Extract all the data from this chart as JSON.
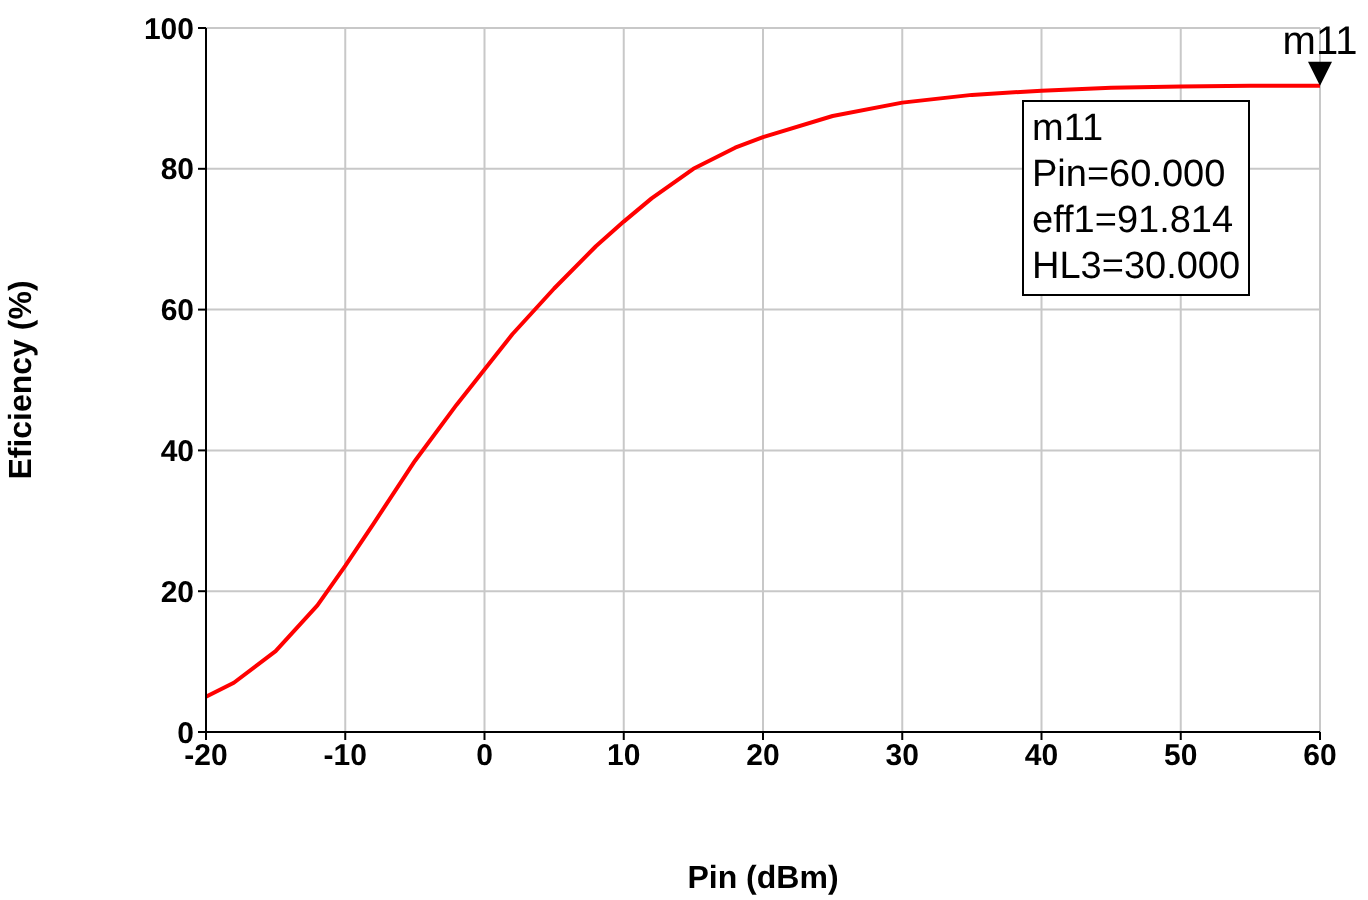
{
  "chart_data": {
    "type": "line",
    "xlabel": "Pin (dBm)",
    "ylabel": "Eficiency (%)",
    "x": [
      -20,
      -18,
      -15,
      -12,
      -10,
      -8,
      -5,
      -2,
      0,
      2,
      5,
      8,
      10,
      12,
      15,
      18,
      20,
      25,
      30,
      35,
      40,
      45,
      50,
      55,
      60
    ],
    "series": [
      {
        "color": "#ff0000",
        "values": [
          5,
          7,
          11.5,
          18,
          23.6,
          29.5,
          38.5,
          46.5,
          51.5,
          56.5,
          63,
          69,
          72.5,
          75.8,
          80,
          83,
          84.5,
          87.5,
          89.4,
          90.5,
          91.1,
          91.5,
          91.7,
          91.8,
          91.814
        ]
      }
    ],
    "xlim": [
      -20,
      60
    ],
    "xticks": [
      -20,
      -10,
      0,
      10,
      20,
      30,
      40,
      50,
      60
    ],
    "ylim": [
      0,
      100
    ],
    "yticks": [
      0,
      20,
      40,
      60,
      80,
      100
    ],
    "grid": true,
    "marker": "none",
    "line_style": "solid",
    "annotations": [
      {
        "text": "m11",
        "x": 60,
        "y": 91.814
      },
      "m11",
      "Pin=60.000",
      "eff1=91.814",
      "HL3=30.000"
    ]
  }
}
